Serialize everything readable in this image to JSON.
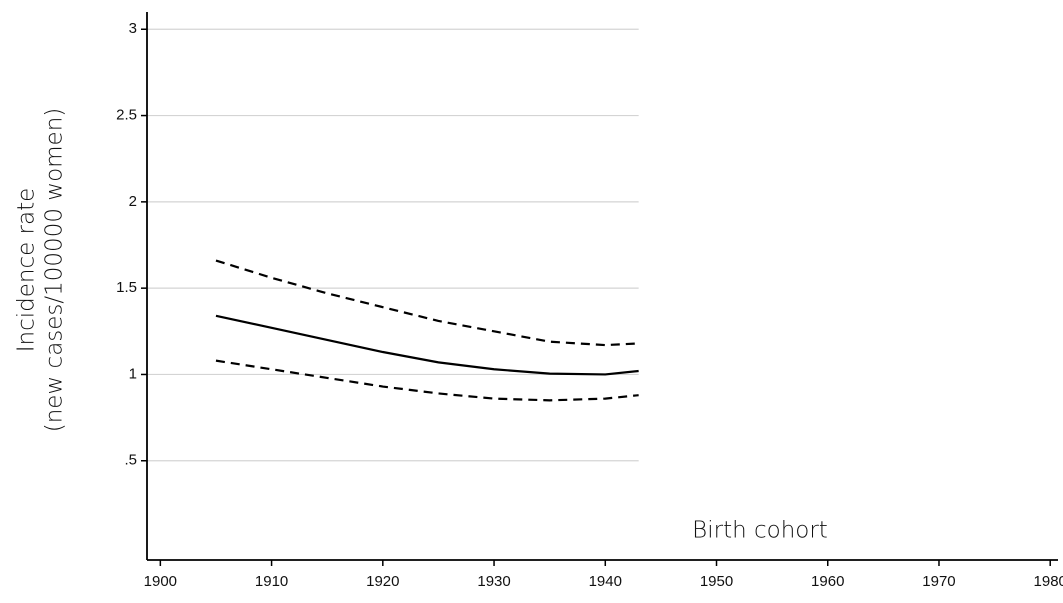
{
  "chart_data": {
    "type": "line",
    "xlabel": "Birth cohort",
    "ylabel": [
      "Incidence rate",
      "(new cases/100000 women)"
    ],
    "x": [
      1905,
      1910,
      1915,
      1920,
      1925,
      1930,
      1935,
      1940,
      1943
    ],
    "series": [
      {
        "color": "#000000",
        "dashed": true,
        "values": [
          1.66,
          1.56,
          1.47,
          1.39,
          1.31,
          1.25,
          1.19,
          1.17,
          1.18
        ]
      },
      {
        "color": "#000000",
        "dashed": false,
        "values": [
          1.34,
          1.27,
          1.2,
          1.13,
          1.07,
          1.03,
          1.005,
          1.0,
          1.02
        ]
      },
      {
        "color": "#000000",
        "dashed": true,
        "values": [
          1.08,
          1.03,
          0.98,
          0.93,
          0.89,
          0.86,
          0.85,
          0.86,
          0.88
        ]
      }
    ],
    "xlim": [
      1898.8,
      1980.7
    ],
    "xticks": [
      1900,
      1910,
      1920,
      1930,
      1940,
      1950,
      1960,
      1970,
      1980
    ],
    "ylim": [
      -0.075,
      3.1
    ],
    "yticks": [
      {
        "value": 0.5,
        "label": ".5"
      },
      1,
      1.5,
      2,
      2.5,
      3
    ],
    "grid": true
  }
}
